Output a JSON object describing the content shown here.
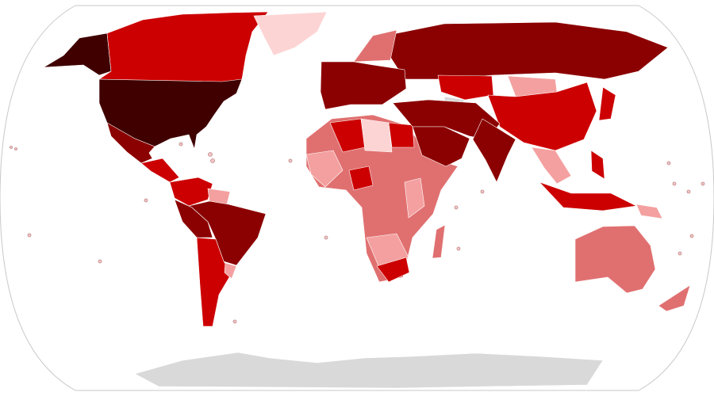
{
  "map": {
    "ocean_color": "#ffffff",
    "frame_color": "#c8c8c8",
    "no_data_color": "#d9d9d9",
    "color_scale": [
      "#fdd4d4",
      "#f4a0a0",
      "#e07070",
      "#cc0000",
      "#8b0000",
      "#400000"
    ],
    "regions": {
      "usa": 5,
      "alaska": 5,
      "canada": 3,
      "greenland": 0,
      "mexico": 4,
      "central-america": 3,
      "venezuela-colombia": 3,
      "guyanas": 1,
      "peru-bolivia": 4,
      "brazil": 4,
      "southern-cone": 3,
      "uruguay": 1,
      "africa": 2,
      "west-africa-coast": 1,
      "algeria": 3,
      "libya": 0,
      "egypt": 3,
      "nigeria": 3,
      "east-africa": 1,
      "southern-africa": 1,
      "south-africa": 3,
      "madagascar": 2,
      "europe": 4,
      "scandinavia": 2,
      "russia": 4,
      "kazakhstan": 3,
      "mongolia": 1,
      "central-asia-gap": -1,
      "china": 3,
      "middle-east": 4,
      "arabia": 4,
      "india": 4,
      "southeast-asia": 1,
      "indonesia": 3,
      "japan": 3,
      "philippines": 3,
      "png": 1,
      "australia": 2,
      "new-zealand": 2,
      "antarctica": -1
    }
  }
}
